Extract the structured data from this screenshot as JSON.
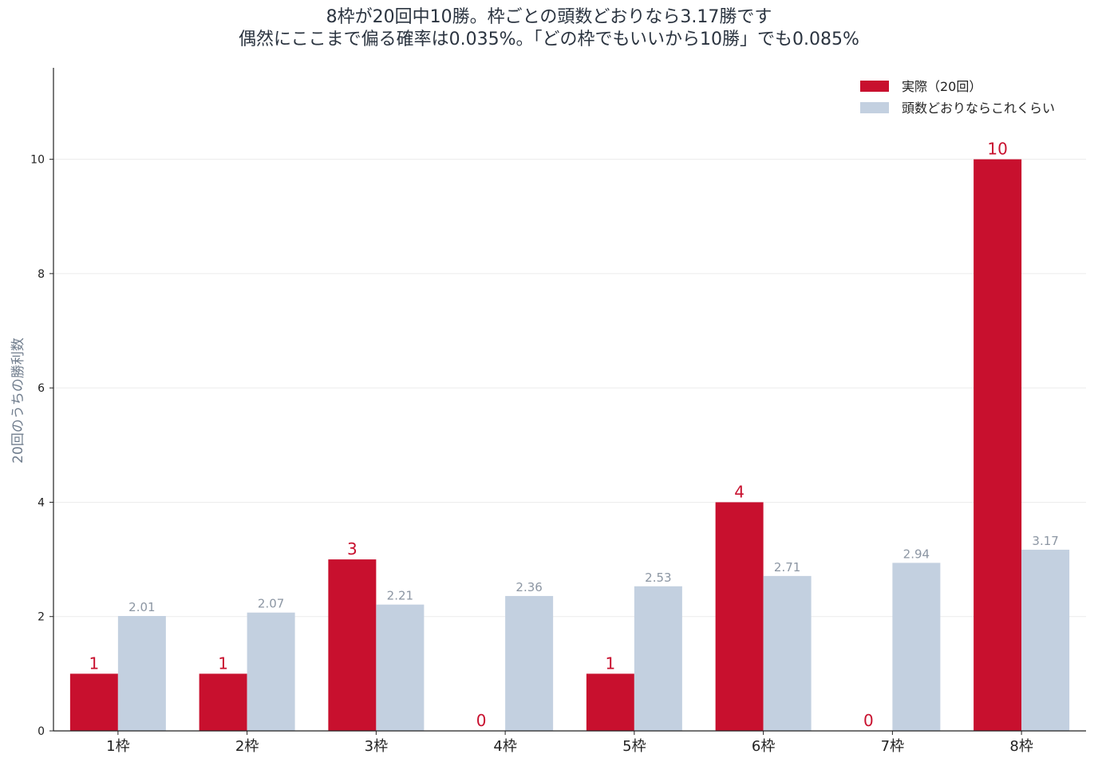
{
  "chart_data": {
    "type": "bar",
    "title_lines": [
      "8枠が20回中10勝。枠ごとの頭数どおりなら3.17勝です",
      "偶然にここまで偏る確率は0.035%。「どの枠でもいいから10勝」でも0.085%"
    ],
    "xlabel": "",
    "ylabel": "20回のうちの勝利数",
    "categories": [
      "1枠",
      "2枠",
      "3枠",
      "4枠",
      "5枠",
      "6枠",
      "7枠",
      "8枠"
    ],
    "series": [
      {
        "name": "実際（20回）",
        "values": [
          1,
          1,
          3,
          0,
          1,
          4,
          0,
          10
        ],
        "color": "#c8102e",
        "labels": [
          "1",
          "1",
          "3",
          "0",
          "1",
          "4",
          "0",
          "10"
        ]
      },
      {
        "name": "頭数どおりならこれくらい",
        "values": [
          2.01,
          2.07,
          2.21,
          2.36,
          2.53,
          2.71,
          2.94,
          3.17
        ],
        "color": "#c3d0e0",
        "labels": [
          "2.01",
          "2.07",
          "2.21",
          "2.36",
          "2.53",
          "2.71",
          "2.94",
          "3.17"
        ]
      }
    ],
    "ylim": [
      0,
      11.6
    ],
    "yticks": [
      0,
      2,
      4,
      6,
      8,
      10
    ],
    "grid": true,
    "legend_position": "top-right"
  }
}
